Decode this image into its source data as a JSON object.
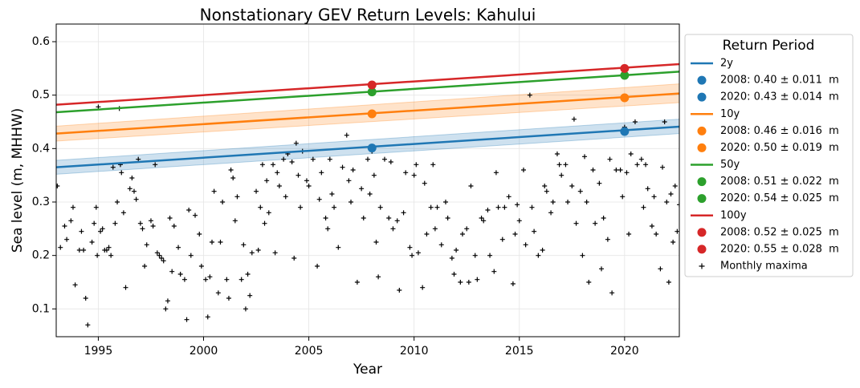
{
  "chart_data": {
    "type": "line",
    "title": "Nonstationary GEV Return Levels: Kahului",
    "x_label": "Year",
    "y_label": "Sea level (m, MHHW)",
    "xlim": [
      1993,
      2022.6
    ],
    "ylim": [
      0.048,
      0.633
    ],
    "xticks": [
      1995,
      2000,
      2005,
      2010,
      2015,
      2020
    ],
    "yticks": [
      0.1,
      0.2,
      0.3,
      0.4,
      0.5,
      0.6
    ],
    "grid": true,
    "legend_title": "Return Period",
    "legend_position": "outside-right",
    "series": [
      {
        "name": "2y",
        "marker": "line",
        "color": "#1f77b4",
        "x": [
          1993,
          2022.6
        ],
        "values": [
          0.365,
          0.441
        ],
        "band_lower": [
          0.352,
          0.428
        ],
        "band_upper": [
          0.378,
          0.455
        ]
      },
      {
        "name": "2008: 0.40 ± 0.011  m",
        "marker": "point",
        "color": "#1f77b4",
        "x": [
          2008
        ],
        "values": [
          0.401
        ]
      },
      {
        "name": "2020: 0.43 ± 0.014  m",
        "marker": "point",
        "color": "#1f77b4",
        "x": [
          2020
        ],
        "values": [
          0.432
        ]
      },
      {
        "name": "10y",
        "marker": "line",
        "color": "#ff7f0e",
        "x": [
          1993,
          2022.6
        ],
        "values": [
          0.428,
          0.503
        ],
        "band_lower": [
          0.414,
          0.486
        ],
        "band_upper": [
          0.442,
          0.521
        ]
      },
      {
        "name": "2008: 0.46 ± 0.016  m",
        "marker": "point",
        "color": "#ff7f0e",
        "x": [
          2008
        ],
        "values": [
          0.465
        ]
      },
      {
        "name": "2020: 0.50 ± 0.019  m",
        "marker": "point",
        "color": "#ff7f0e",
        "x": [
          2020
        ],
        "values": [
          0.495
        ]
      },
      {
        "name": "50y",
        "marker": "line",
        "color": "#2ca02c",
        "x": [
          1993,
          2022.6
        ],
        "values": [
          0.468,
          0.544
        ]
      },
      {
        "name": "2008: 0.51 ± 0.022  m",
        "marker": "point",
        "color": "#2ca02c",
        "x": [
          2008
        ],
        "values": [
          0.506
        ]
      },
      {
        "name": "2020: 0.54 ± 0.025  m",
        "marker": "point",
        "color": "#2ca02c",
        "x": [
          2020
        ],
        "values": [
          0.537
        ]
      },
      {
        "name": "100y",
        "marker": "line",
        "color": "#d62728",
        "x": [
          1993,
          2022.6
        ],
        "values": [
          0.482,
          0.558
        ]
      },
      {
        "name": "2008: 0.52 ± 0.025  m",
        "marker": "point",
        "color": "#d62728",
        "x": [
          2008
        ],
        "values": [
          0.519
        ]
      },
      {
        "name": "2020: 0.55 ± 0.028  m",
        "marker": "point",
        "color": "#d62728",
        "x": [
          2020
        ],
        "values": [
          0.55
        ]
      },
      {
        "name": "Monthly maxima",
        "marker": "cross",
        "color": "#000000",
        "x": [
          1993.05,
          1993.2,
          1993.4,
          1993.5,
          1993.7,
          1993.8,
          1993.9,
          1994.1,
          1994.2,
          1994.3,
          1994.4,
          1994.5,
          1994.7,
          1994.8,
          1994.9,
          1994.95,
          1995.0,
          1995.1,
          1995.2,
          1995.3,
          1995.4,
          1995.5,
          1995.6,
          1995.7,
          1995.8,
          1995.9,
          1996.0,
          1996.05,
          1996.1,
          1996.2,
          1996.3,
          1996.5,
          1996.6,
          1996.7,
          1996.8,
          1996.9,
          1997.0,
          1997.1,
          1997.2,
          1997.3,
          1997.5,
          1997.6,
          1997.7,
          1997.8,
          1997.9,
          1998.0,
          1998.1,
          1998.2,
          1998.3,
          1998.4,
          1998.5,
          1998.6,
          1998.8,
          1998.9,
          1999.1,
          1999.2,
          1999.3,
          1999.4,
          1999.6,
          1999.8,
          1999.9,
          2000.1,
          2000.2,
          2000.3,
          2000.4,
          2000.5,
          2000.7,
          2000.8,
          2000.9,
          2001.1,
          2001.2,
          2001.3,
          2001.4,
          2001.5,
          2001.6,
          2001.8,
          2001.9,
          2002.0,
          2002.1,
          2002.2,
          2002.3,
          2002.5,
          2002.6,
          2002.7,
          2002.8,
          2002.9,
          2003.0,
          2003.1,
          2003.3,
          2003.4,
          2003.5,
          2003.6,
          2003.8,
          2003.9,
          2004.0,
          2004.2,
          2004.3,
          2004.4,
          2004.5,
          2004.6,
          2004.7,
          2004.9,
          2005.0,
          2005.2,
          2005.4,
          2005.5,
          2005.6,
          2005.8,
          2005.9,
          2006.0,
          2006.1,
          2006.2,
          2006.4,
          2006.6,
          2006.8,
          2006.9,
          2007.0,
          2007.1,
          2007.3,
          2007.5,
          2007.6,
          2007.8,
          2007.9,
          2008.0,
          2008.1,
          2008.2,
          2008.3,
          2008.4,
          2008.6,
          2008.8,
          2008.9,
          2009.0,
          2009.2,
          2009.3,
          2009.5,
          2009.6,
          2009.8,
          2009.9,
          2010.0,
          2010.1,
          2010.2,
          2010.4,
          2010.5,
          2010.6,
          2010.8,
          2010.9,
          2011.0,
          2011.1,
          2011.3,
          2011.5,
          2011.6,
          2011.8,
          2011.9,
          2012.0,
          2012.2,
          2012.3,
          2012.5,
          2012.6,
          2012.7,
          2012.9,
          2013.0,
          2013.2,
          2013.3,
          2013.5,
          2013.6,
          2013.8,
          2013.9,
          2014.0,
          2014.2,
          2014.3,
          2014.5,
          2014.7,
          2014.8,
          2014.9,
          2015.0,
          2015.2,
          2015.3,
          2015.5,
          2015.6,
          2015.7,
          2015.9,
          2016.1,
          2016.2,
          2016.3,
          2016.5,
          2016.6,
          2016.8,
          2016.9,
          2017.0,
          2017.2,
          2017.3,
          2017.5,
          2017.6,
          2017.7,
          2017.9,
          2018.0,
          2018.1,
          2018.2,
          2018.3,
          2018.5,
          2018.6,
          2018.8,
          2018.9,
          2019.0,
          2019.2,
          2019.3,
          2019.4,
          2019.6,
          2019.8,
          2019.9,
          2020.0,
          2020.1,
          2020.2,
          2020.3,
          2020.5,
          2020.6,
          2020.8,
          2020.9,
          2021.0,
          2021.1,
          2021.3,
          2021.4,
          2021.5,
          2021.7,
          2021.8,
          2021.9,
          2022.0,
          2022.1,
          2022.2,
          2022.3,
          2022.4,
          2022.5,
          2022.6
        ],
        "values": [
          0.33,
          0.215,
          0.255,
          0.23,
          0.265,
          0.29,
          0.145,
          0.21,
          0.245,
          0.21,
          0.12,
          0.07,
          0.225,
          0.26,
          0.29,
          0.2,
          0.478,
          0.245,
          0.25,
          0.21,
          0.21,
          0.215,
          0.2,
          0.365,
          0.26,
          0.3,
          0.475,
          0.37,
          0.355,
          0.28,
          0.14,
          0.325,
          0.345,
          0.32,
          0.305,
          0.38,
          0.26,
          0.25,
          0.18,
          0.22,
          0.265,
          0.255,
          0.37,
          0.205,
          0.2,
          0.195,
          0.19,
          0.1,
          0.115,
          0.27,
          0.17,
          0.255,
          0.215,
          0.165,
          0.155,
          0.08,
          0.285,
          0.2,
          0.275,
          0.24,
          0.18,
          0.155,
          0.085,
          0.16,
          0.225,
          0.32,
          0.13,
          0.225,
          0.3,
          0.155,
          0.12,
          0.36,
          0.345,
          0.265,
          0.31,
          0.155,
          0.22,
          0.1,
          0.165,
          0.125,
          0.205,
          0.32,
          0.21,
          0.29,
          0.37,
          0.26,
          0.34,
          0.28,
          0.37,
          0.205,
          0.355,
          0.33,
          0.38,
          0.31,
          0.39,
          0.375,
          0.195,
          0.41,
          0.35,
          0.29,
          0.395,
          0.34,
          0.33,
          0.38,
          0.18,
          0.305,
          0.355,
          0.27,
          0.25,
          0.38,
          0.315,
          0.29,
          0.215,
          0.365,
          0.425,
          0.34,
          0.3,
          0.36,
          0.15,
          0.325,
          0.27,
          0.38,
          0.315,
          0.395,
          0.35,
          0.225,
          0.16,
          0.29,
          0.38,
          0.27,
          0.375,
          0.25,
          0.265,
          0.135,
          0.28,
          0.355,
          0.215,
          0.2,
          0.35,
          0.37,
          0.205,
          0.14,
          0.335,
          0.24,
          0.29,
          0.37,
          0.25,
          0.29,
          0.22,
          0.3,
          0.27,
          0.195,
          0.165,
          0.21,
          0.15,
          0.24,
          0.25,
          0.15,
          0.33,
          0.2,
          0.155,
          0.27,
          0.265,
          0.285,
          0.2,
          0.17,
          0.355,
          0.29,
          0.23,
          0.29,
          0.31,
          0.147,
          0.24,
          0.295,
          0.265,
          0.36,
          0.22,
          0.5,
          0.29,
          0.245,
          0.2,
          0.21,
          0.33,
          0.32,
          0.28,
          0.3,
          0.39,
          0.37,
          0.35,
          0.37,
          0.3,
          0.33,
          0.455,
          0.26,
          0.32,
          0.2,
          0.385,
          0.3,
          0.15,
          0.36,
          0.26,
          0.335,
          0.175,
          0.27,
          0.23,
          0.38,
          0.13,
          0.36,
          0.36,
          0.31,
          0.44,
          0.355,
          0.24,
          0.39,
          0.45,
          0.37,
          0.38,
          0.29,
          0.37,
          0.325,
          0.255,
          0.31,
          0.24,
          0.175,
          0.365,
          0.45,
          0.3,
          0.15,
          0.315,
          0.225,
          0.33,
          0.245,
          0.295
        ]
      }
    ]
  }
}
